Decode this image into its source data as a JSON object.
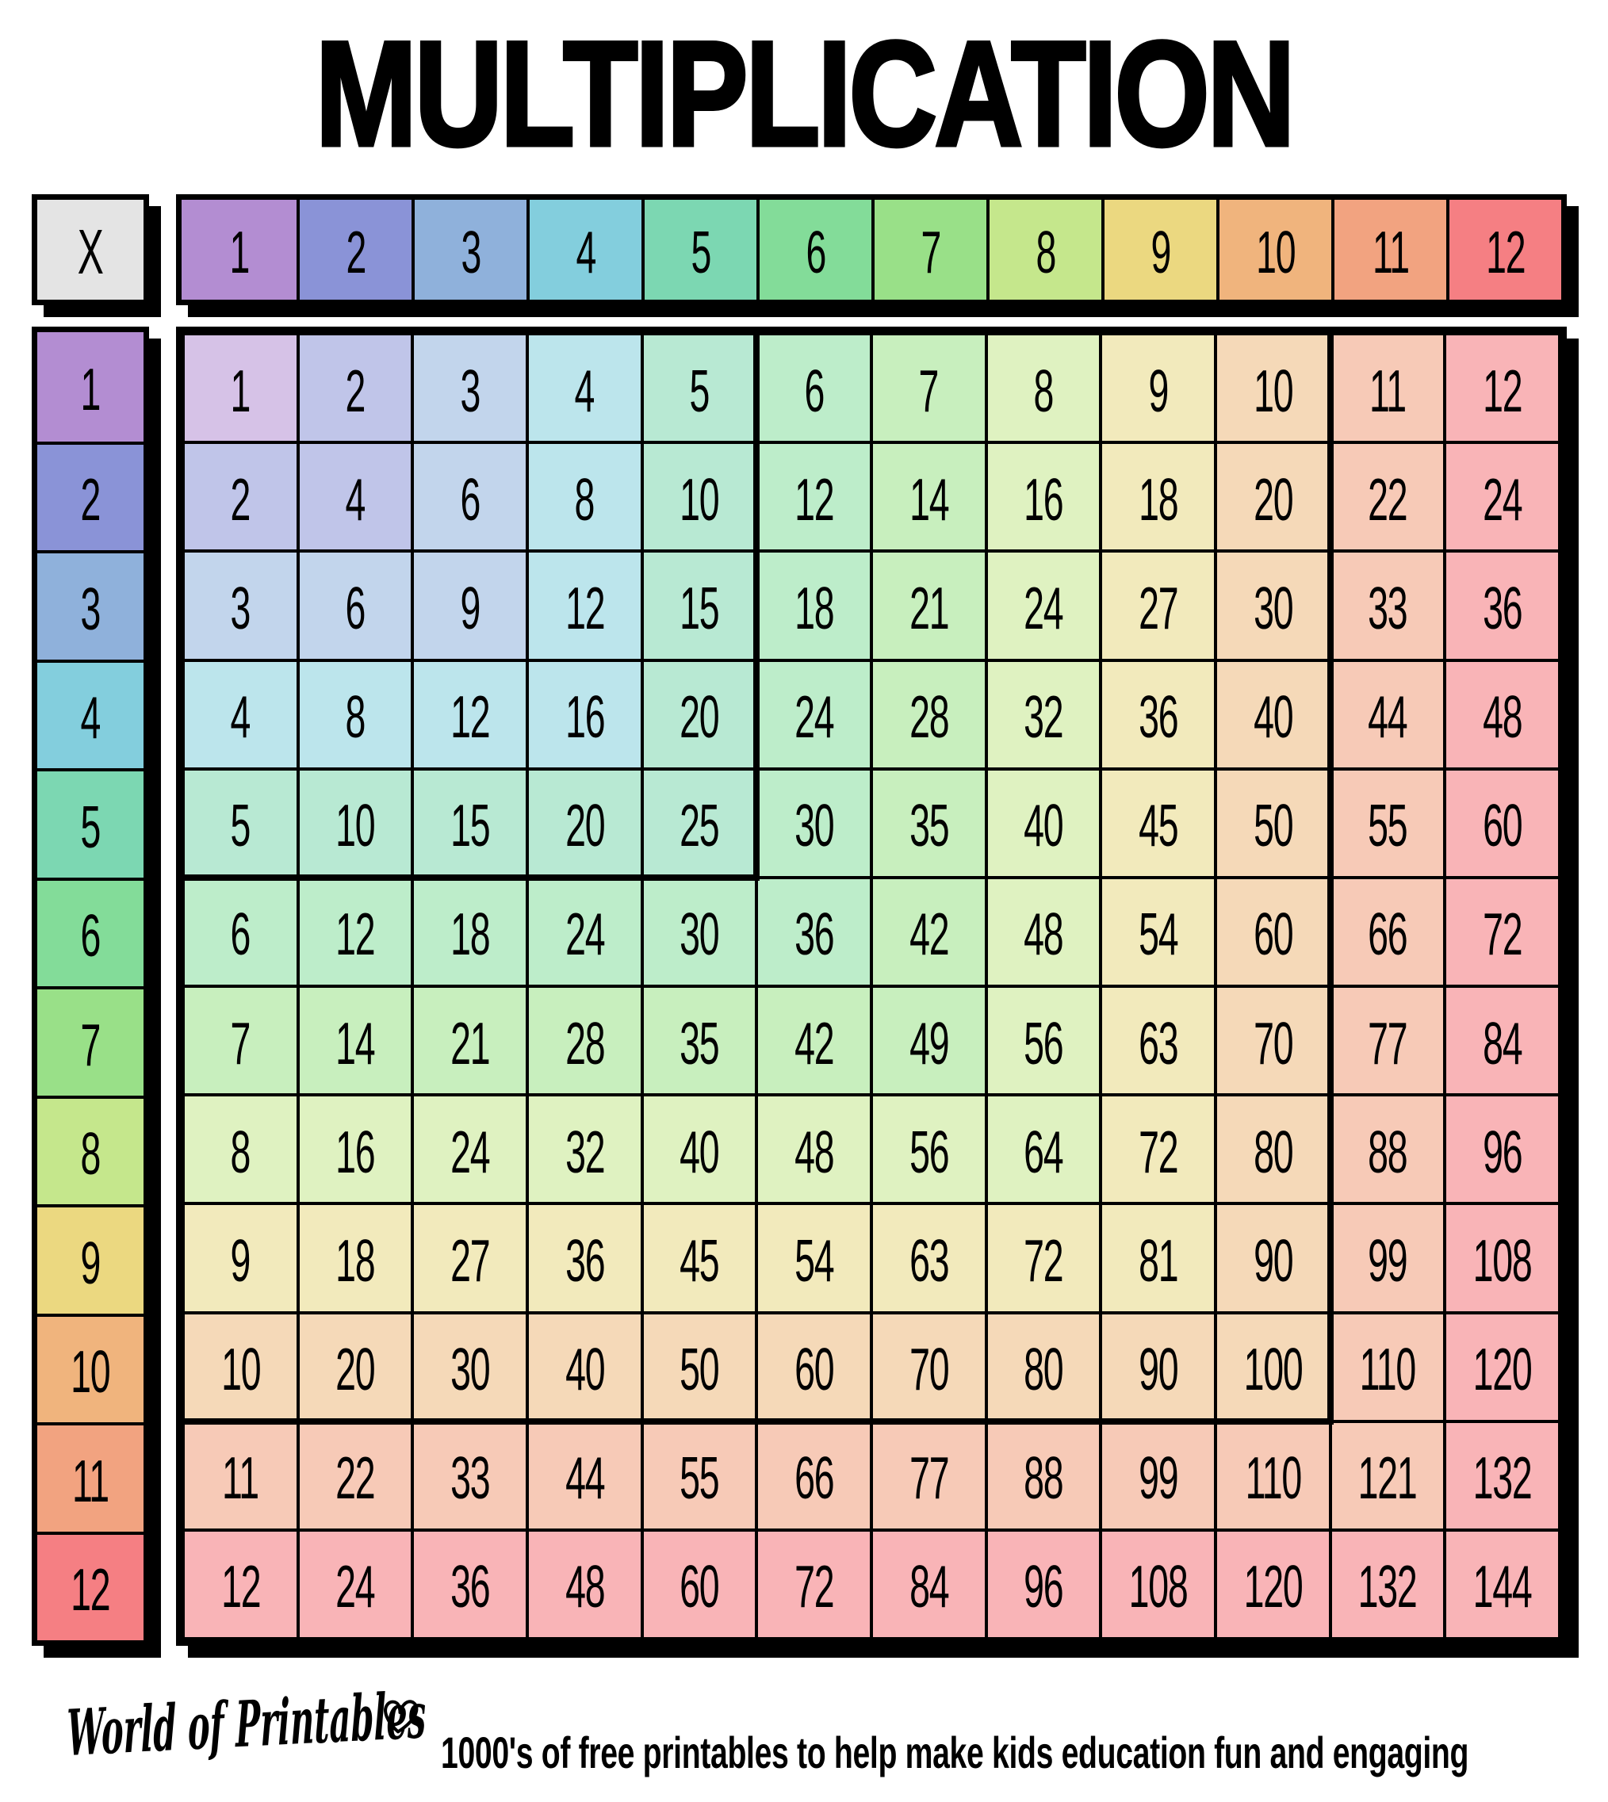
{
  "title": "MULTIPLICATION",
  "table": {
    "corner_label": "X",
    "column_headers": [
      "1",
      "2",
      "3",
      "4",
      "5",
      "6",
      "7",
      "8",
      "9",
      "10",
      "11",
      "12"
    ],
    "row_headers": [
      "1",
      "2",
      "3",
      "4",
      "5",
      "6",
      "7",
      "8",
      "9",
      "10",
      "11",
      "12"
    ],
    "rows": [
      [
        1,
        2,
        3,
        4,
        5,
        6,
        7,
        8,
        9,
        10,
        11,
        12
      ],
      [
        2,
        4,
        6,
        8,
        10,
        12,
        14,
        16,
        18,
        20,
        22,
        24
      ],
      [
        3,
        6,
        9,
        12,
        15,
        18,
        21,
        24,
        27,
        30,
        33,
        36
      ],
      [
        4,
        8,
        12,
        16,
        20,
        24,
        28,
        32,
        36,
        40,
        44,
        48
      ],
      [
        5,
        10,
        15,
        20,
        25,
        30,
        35,
        40,
        45,
        50,
        55,
        60
      ],
      [
        6,
        12,
        18,
        24,
        30,
        36,
        42,
        48,
        54,
        60,
        66,
        72
      ],
      [
        7,
        14,
        21,
        28,
        35,
        42,
        49,
        56,
        63,
        70,
        77,
        84
      ],
      [
        8,
        16,
        24,
        32,
        40,
        48,
        56,
        64,
        72,
        80,
        88,
        96
      ],
      [
        9,
        18,
        27,
        36,
        45,
        54,
        63,
        72,
        81,
        90,
        99,
        108
      ],
      [
        10,
        20,
        30,
        40,
        50,
        60,
        70,
        80,
        90,
        100,
        110,
        120
      ],
      [
        11,
        22,
        33,
        44,
        55,
        66,
        77,
        88,
        99,
        110,
        121,
        132
      ],
      [
        12,
        24,
        36,
        48,
        60,
        72,
        84,
        96,
        108,
        120,
        132,
        144
      ]
    ]
  },
  "palette": {
    "corner_bg": "#e4e4e4",
    "line_color": "#000000",
    "page_bg": "#ffffff",
    "header_colors": [
      "#b38dd2",
      "#8a93d7",
      "#8fb1db",
      "#83cedd",
      "#7cd7b2",
      "#83dc99",
      "#99e088",
      "#c5e78c",
      "#ebd880",
      "#f0b47d",
      "#f2a380",
      "#f57f83"
    ],
    "cell_colors": [
      "#d6c2e7",
      "#c0c5e9",
      "#c2d5ec",
      "#bce5ec",
      "#b8e9d3",
      "#bdedca",
      "#c8efbe",
      "#dff2c1",
      "#f2eabc",
      "#f5d9b8",
      "#f7cab7",
      "#f9b4b7"
    ]
  },
  "footer": {
    "brand": "World of Printables",
    "heart_icon": "♡",
    "tagline": "1000's of free printables to help make kids education fun and engaging"
  }
}
